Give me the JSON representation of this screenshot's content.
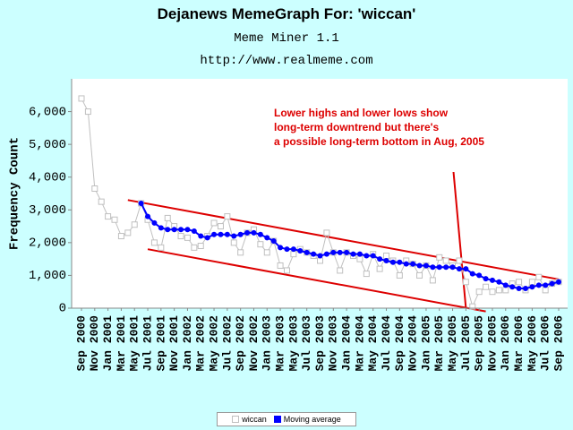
{
  "header": {
    "title": "Dejanews MemeGraph For: 'wiccan'",
    "subtitle": "Meme Miner 1.1",
    "url": "http://www.realmeme.com"
  },
  "chart_data": {
    "type": "line",
    "ylabel": "Frequency Count",
    "ylim": [
      0,
      7000
    ],
    "yticks": [
      0,
      1000,
      2000,
      3000,
      4000,
      5000,
      6000
    ],
    "ytick_labels": [
      "0",
      "1,000",
      "2,000",
      "3,000",
      "4,000",
      "5,000",
      "6,000"
    ],
    "x_tick_labels": [
      "Sep 2000",
      "Nov 2000",
      "Jan 2001",
      "Mar 2001",
      "May 2001",
      "Jul 2001",
      "Sep 2001",
      "Nov 2001",
      "Jan 2002",
      "Mar 2002",
      "May 2002",
      "Jul 2002",
      "Sep 2002",
      "Nov 2002",
      "Jan 2003",
      "Mar 2003",
      "May 2003",
      "Jul 2003",
      "Sep 2003",
      "Nov 2003",
      "Jan 2004",
      "Mar 2004",
      "May 2004",
      "Jul 2004",
      "Sep 2004",
      "Nov 2004",
      "Jan 2005",
      "Mar 2005",
      "May 2005",
      "Jul 2005",
      "Sep 2005",
      "Nov 2005",
      "Jan 2006",
      "Mar 2006",
      "May 2006",
      "Jul 2006",
      "Sep 2006"
    ],
    "x": [
      "Sep 2000",
      "Oct 2000",
      "Nov 2000",
      "Dec 2000",
      "Jan 2001",
      "Feb 2001",
      "Mar 2001",
      "Apr 2001",
      "May 2001",
      "Jun 2001",
      "Jul 2001",
      "Aug 2001",
      "Sep 2001",
      "Oct 2001",
      "Nov 2001",
      "Dec 2001",
      "Jan 2002",
      "Feb 2002",
      "Mar 2002",
      "Apr 2002",
      "May 2002",
      "Jun 2002",
      "Jul 2002",
      "Aug 2002",
      "Sep 2002",
      "Oct 2002",
      "Nov 2002",
      "Dec 2002",
      "Jan 2003",
      "Feb 2003",
      "Mar 2003",
      "Apr 2003",
      "May 2003",
      "Jun 2003",
      "Jul 2003",
      "Aug 2003",
      "Sep 2003",
      "Oct 2003",
      "Nov 2003",
      "Dec 2003",
      "Jan 2004",
      "Feb 2004",
      "Mar 2004",
      "Apr 2004",
      "May 2004",
      "Jun 2004",
      "Jul 2004",
      "Aug 2004",
      "Sep 2004",
      "Oct 2004",
      "Nov 2004",
      "Dec 2004",
      "Jan 2005",
      "Feb 2005",
      "Mar 2005",
      "Apr 2005",
      "May 2005",
      "Jun 2005",
      "Jul 2005",
      "Aug 2005",
      "Sep 2005",
      "Oct 2005",
      "Nov 2005",
      "Dec 2005",
      "Jan 2006",
      "Feb 2006",
      "Mar 2006",
      "Apr 2006",
      "May 2006",
      "Jun 2006",
      "Jul 2006",
      "Aug 2006",
      "Sep 2006"
    ],
    "series": [
      {
        "name": "wiccan",
        "color": "#c0c0c0",
        "marker": "hollow-square",
        "values": [
          6400,
          6000,
          3650,
          3250,
          2800,
          2700,
          2200,
          2300,
          2550,
          3200,
          2700,
          2000,
          1850,
          2750,
          2500,
          2200,
          2150,
          1850,
          1900,
          2200,
          2600,
          2500,
          2800,
          2000,
          1700,
          2300,
          2400,
          1950,
          1700,
          2050,
          1300,
          1150,
          1650,
          1800,
          1700,
          1600,
          1450,
          2300,
          1700,
          1150,
          1700,
          1600,
          1500,
          1050,
          1650,
          1200,
          1600,
          1450,
          1000,
          1450,
          1350,
          1000,
          1300,
          850,
          1550,
          1450,
          1300,
          1450,
          800,
          50,
          500,
          650,
          500,
          550,
          550,
          750,
          800,
          550,
          800,
          950,
          550,
          750,
          800
        ]
      },
      {
        "name": "Moving average",
        "color": "#0000ff",
        "marker": "filled-circle",
        "values": [
          null,
          null,
          null,
          null,
          null,
          null,
          null,
          null,
          null,
          3200,
          2800,
          2600,
          2450,
          2400,
          2400,
          2400,
          2400,
          2350,
          2200,
          2150,
          2250,
          2250,
          2250,
          2200,
          2250,
          2300,
          2300,
          2250,
          2150,
          2050,
          1850,
          1800,
          1800,
          1750,
          1700,
          1650,
          1600,
          1650,
          1700,
          1700,
          1700,
          1650,
          1650,
          1600,
          1600,
          1500,
          1450,
          1400,
          1400,
          1350,
          1350,
          1300,
          1300,
          1250,
          1250,
          1250,
          1250,
          1200,
          1200,
          1050,
          1000,
          900,
          850,
          800,
          700,
          650,
          600,
          600,
          650,
          700,
          700,
          750,
          800
        ]
      }
    ],
    "trendlines": [
      {
        "start": [
          "Apr 2001",
          3300
        ],
        "end": [
          "Sep 2006",
          880
        ],
        "color": "#dd0000"
      },
      {
        "start": [
          "Jul 2001",
          1800
        ],
        "end": [
          "Oct 2005",
          -100
        ],
        "color": "#dd0000"
      },
      {
        "start": [
          "May 2005",
          4450
        ],
        "end": [
          "Jul 2005",
          0
        ],
        "color": "#dd0000"
      }
    ],
    "annotation": {
      "lines": [
        "Lower highs and lower lows show",
        "long-term downtrend but there's",
        "a possible long-term bottom in Aug, 2005"
      ],
      "color": "#dd0000"
    },
    "legend_position": "bottom-center",
    "grid": false
  }
}
